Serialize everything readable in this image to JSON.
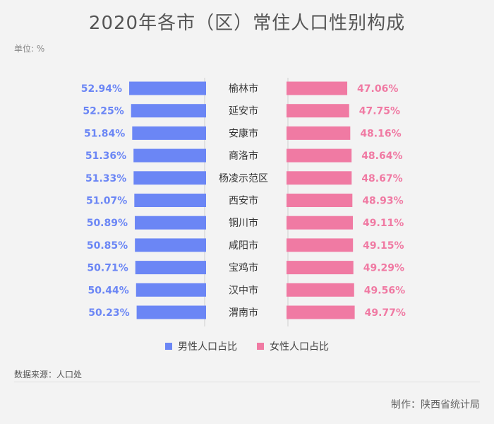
{
  "chart_data": {
    "type": "bar",
    "title": "2020年各市（区）常住人口性别构成",
    "unit_label": "单位: %",
    "categories": [
      "榆林市",
      "延安市",
      "安康市",
      "商洛市",
      "杨凌示范区",
      "西安市",
      "铜川市",
      "咸阳市",
      "宝鸡市",
      "汉中市",
      "渭南市"
    ],
    "series": [
      {
        "name": "男性人口占比",
        "values": [
          52.94,
          52.25,
          51.84,
          51.36,
          51.33,
          51.07,
          50.89,
          50.85,
          50.71,
          50.44,
          50.23
        ],
        "labels": [
          "52.94%",
          "52.25%",
          "51.84%",
          "51.36%",
          "51.33%",
          "51.07%",
          "50.89%",
          "50.85%",
          "50.71%",
          "50.44%",
          "50.23%"
        ],
        "color": "#6b86f5"
      },
      {
        "name": "女性人口占比",
        "values": [
          47.06,
          47.75,
          48.16,
          48.64,
          48.67,
          48.93,
          49.11,
          49.15,
          49.29,
          49.56,
          49.77
        ],
        "labels": [
          "47.06%",
          "47.75%",
          "48.16%",
          "48.64%",
          "48.67%",
          "48.93%",
          "49.11%",
          "49.15%",
          "49.29%",
          "49.56%",
          "49.77%"
        ],
        "color": "#f07aa3"
      }
    ]
  },
  "source": "数据来源：人口处",
  "footer": "制作：陕西省统计局"
}
